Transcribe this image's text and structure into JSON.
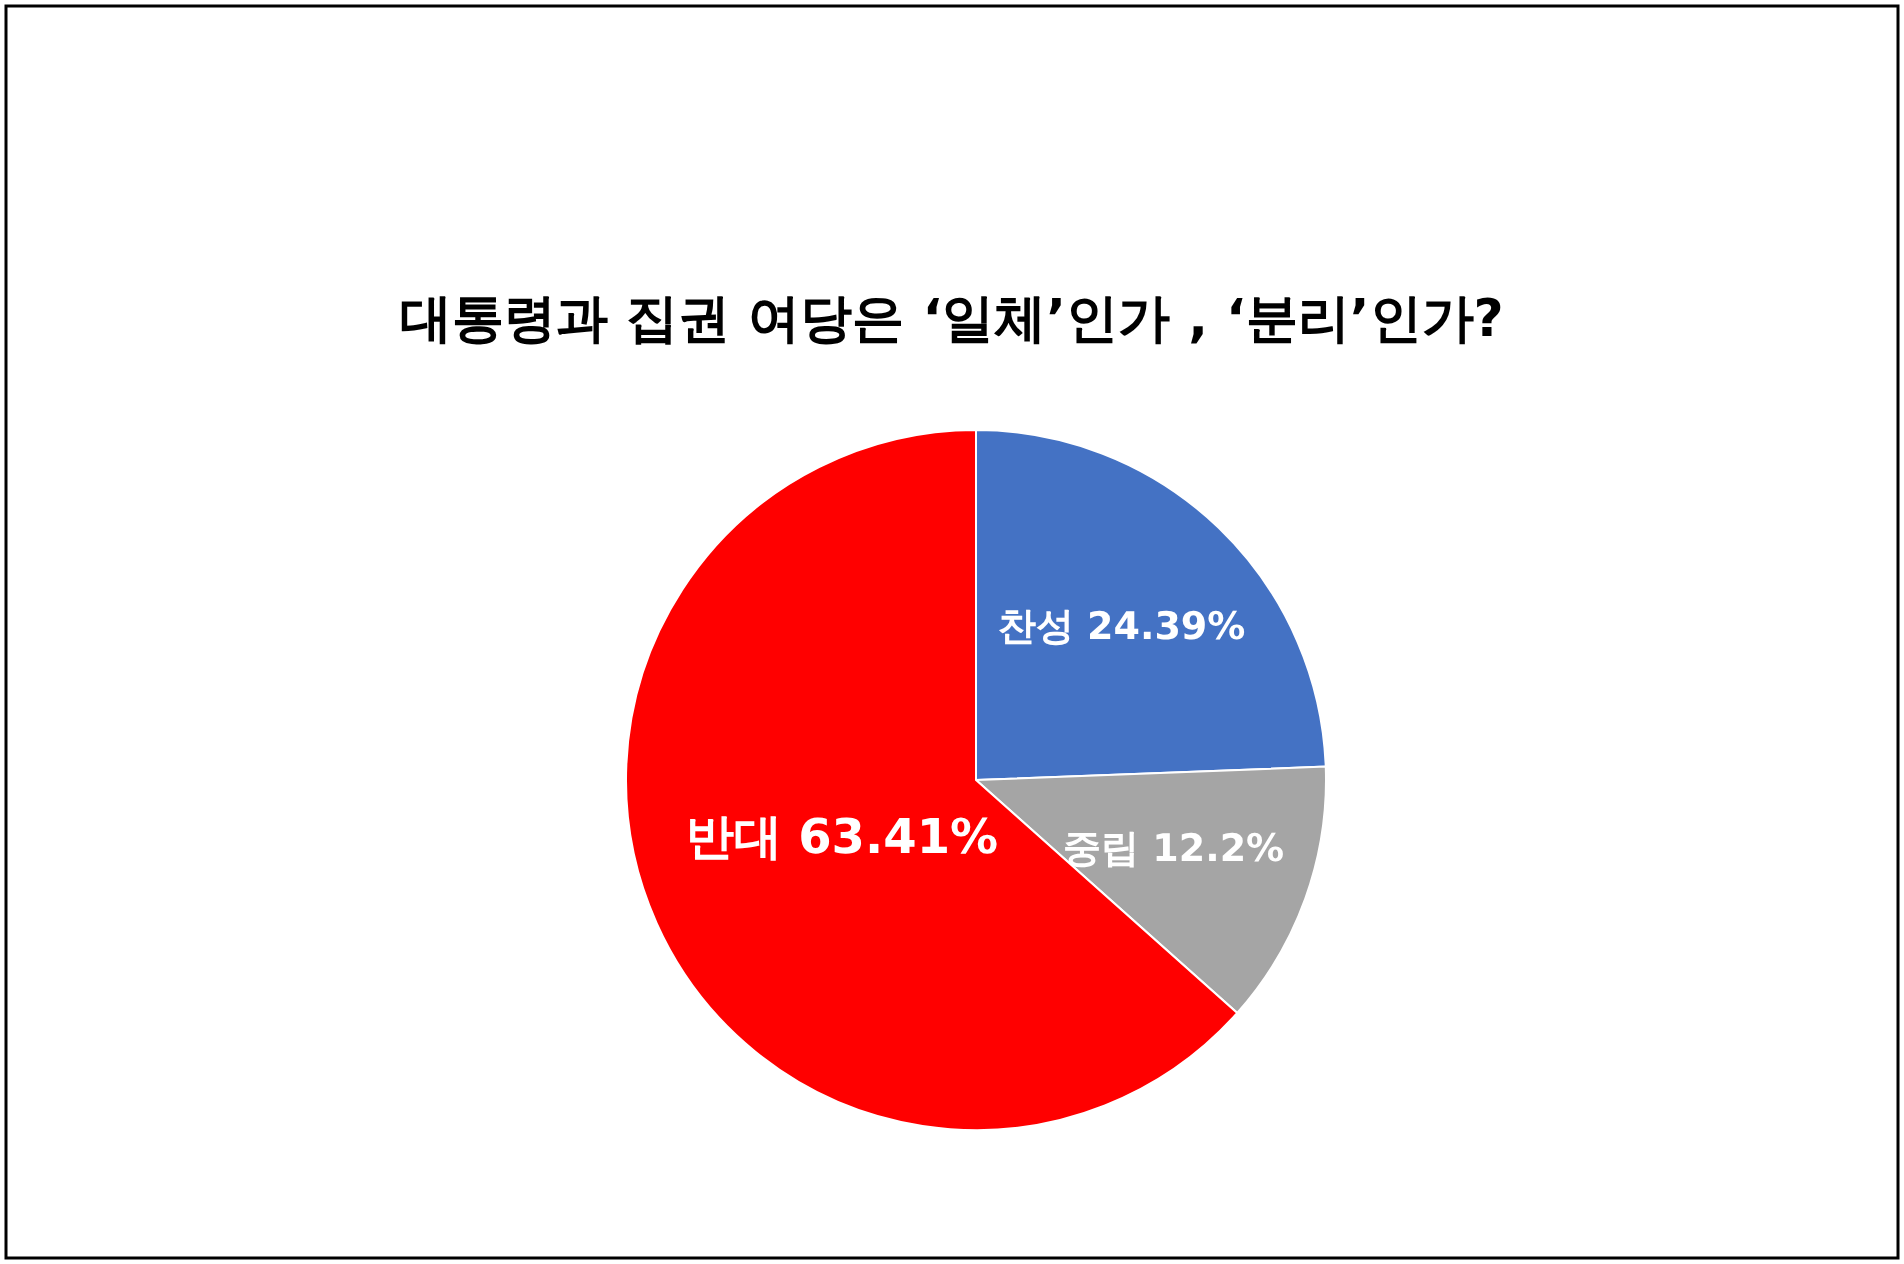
{
  "chart_data": {
    "type": "pie",
    "title": "대통령과 집권 여당은 ‘일체’인가 , ‘분리’인가?",
    "categories": [
      "찬성",
      "중립",
      "반대"
    ],
    "values": [
      24.39,
      12.2,
      63.41
    ],
    "colors": [
      "#4472c4",
      "#a5a5a5",
      "#ff0000"
    ],
    "value_labels": [
      "24.39%",
      "12.2%",
      "63.41%"
    ],
    "legend": false
  }
}
